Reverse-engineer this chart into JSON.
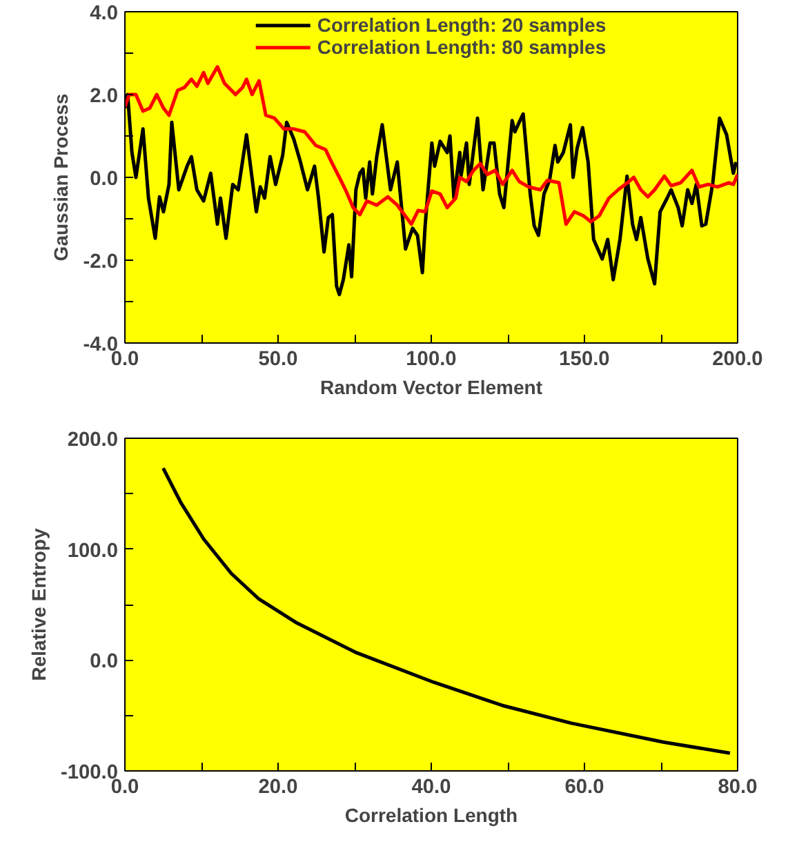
{
  "chart_data": [
    {
      "type": "line",
      "xlabel": "Random Vector Element",
      "ylabel": "Gaussian Process",
      "legend": "top",
      "grid": false,
      "xlim": [
        0,
        200
      ],
      "ylim": [
        -4,
        4
      ],
      "xticks": [
        {
          "value": 0,
          "label": "0.0"
        },
        {
          "value": 25,
          "label": null
        },
        {
          "value": 50,
          "label": "50.0"
        },
        {
          "value": 75,
          "label": null
        },
        {
          "value": 100,
          "label": "100.0"
        },
        {
          "value": 125,
          "label": null
        },
        {
          "value": 150,
          "label": "150.0"
        },
        {
          "value": 175,
          "label": null
        },
        {
          "value": 200,
          "label": "200.0"
        }
      ],
      "yticks": [
        {
          "value": -4,
          "label": "-4.0"
        },
        {
          "value": -3,
          "label": null
        },
        {
          "value": -2,
          "label": "-2.0"
        },
        {
          "value": -1,
          "label": null
        },
        {
          "value": 0,
          "label": "0.0"
        },
        {
          "value": 1,
          "label": null
        },
        {
          "value": 2,
          "label": "2.0"
        },
        {
          "value": 3,
          "label": null
        },
        {
          "value": 4,
          "label": "4.0"
        }
      ],
      "series": [
        {
          "name": "Correlation Length: 20 samples",
          "color": "#000000",
          "x": [
            0,
            0.9,
            2.3,
            3.6,
            5.9,
            7.7,
            9.9,
            11.3,
            12.6,
            14.4,
            15.3,
            17.6,
            20.3,
            21.7,
            23.5,
            25.7,
            28.0,
            30.2,
            31.2,
            33.0,
            35.2,
            37.0,
            39.7,
            42.9,
            44.2,
            45.6,
            47.4,
            49.2,
            51.5,
            52.8,
            55.1,
            57.3,
            59.6,
            61.9,
            63.2,
            65.0,
            66.4,
            67.7,
            69.1,
            70.0,
            71.3,
            73.1,
            74.0,
            75.4,
            76.7,
            77.7,
            78.6,
            79.9,
            80.8,
            82.2,
            84.0,
            86.7,
            88.9,
            91.6,
            93.9,
            95.5,
            97.1,
            98.0,
            100.2,
            101.1,
            102.9,
            105.2,
            106.1,
            107.4,
            109.3,
            109.7,
            111.5,
            112.4,
            115.1,
            116.9,
            119.2,
            120.5,
            122.3,
            123.7,
            126.4,
            127.3,
            128.7,
            130.0,
            132.3,
            133.6,
            135.0,
            136.8,
            138.6,
            140.4,
            141.3,
            143.1,
            145.4,
            146.3,
            147.6,
            149.4,
            151.2,
            153.0,
            155.8,
            157.6,
            159.4,
            161.6,
            163.9,
            165.7,
            167.0,
            168.4,
            170.7,
            172.9,
            174.7,
            177.0,
            178.3,
            180.6,
            181.9,
            183.7,
            185.1,
            186.5,
            188.3,
            189.6,
            191.9,
            194.1,
            196.4,
            198.6,
            199.5
          ],
          "values": [
            1.67,
            2.0,
            0.6,
            0.0,
            1.17,
            -0.5,
            -1.47,
            -0.47,
            -0.83,
            -0.17,
            1.33,
            -0.3,
            0.27,
            0.5,
            -0.3,
            -0.57,
            0.1,
            -1.13,
            -0.5,
            -1.47,
            -0.17,
            -0.3,
            1.03,
            -0.83,
            -0.23,
            -0.5,
            0.5,
            -0.17,
            0.53,
            1.33,
            0.93,
            0.37,
            -0.3,
            0.27,
            -0.5,
            -1.8,
            -0.97,
            -0.9,
            -2.63,
            -2.83,
            -2.47,
            -1.63,
            -2.4,
            -0.3,
            0.1,
            0.2,
            -0.5,
            0.37,
            -0.4,
            0.5,
            1.27,
            -0.3,
            0.37,
            -1.73,
            -1.23,
            -1.4,
            -2.3,
            -1.17,
            0.83,
            0.27,
            0.87,
            0.6,
            1.0,
            -0.5,
            0.6,
            0.03,
            0.83,
            -0.17,
            1.43,
            -0.3,
            0.83,
            0.83,
            -0.4,
            -0.73,
            1.37,
            1.1,
            1.33,
            1.53,
            -0.4,
            -1.17,
            -1.4,
            -0.4,
            -0.07,
            0.77,
            0.37,
            0.6,
            1.27,
            0.0,
            0.7,
            1.2,
            0.37,
            -1.5,
            -1.97,
            -1.5,
            -2.47,
            -1.5,
            0.03,
            -1.13,
            -1.5,
            -0.97,
            -1.97,
            -2.57,
            -0.83,
            -0.5,
            -0.3,
            -0.73,
            -1.17,
            -0.3,
            -0.63,
            -0.17,
            -1.17,
            -1.13,
            -0.13,
            1.43,
            1.03,
            0.1,
            0.37
          ]
        },
        {
          "name": "Correlation Length: 80 samples",
          "color": "#ff0000",
          "x": [
            0,
            1.4,
            3.6,
            5.9,
            8.1,
            10.4,
            12.6,
            14.4,
            17.2,
            19.4,
            21.7,
            23.5,
            25.7,
            27.1,
            30.2,
            32.5,
            34.8,
            36.1,
            38.4,
            39.7,
            41.5,
            43.8,
            46.0,
            48.8,
            51.9,
            55.1,
            58.7,
            62.3,
            65.5,
            67.7,
            70.0,
            72.2,
            74.5,
            76.7,
            79.0,
            82.2,
            85.8,
            88.9,
            93.5,
            95.7,
            98.0,
            100.2,
            102.9,
            105.2,
            108.0,
            109.3,
            111.5,
            113.8,
            116.0,
            118.3,
            120.9,
            123.3,
            126.4,
            128.7,
            131.8,
            135.6,
            137.9,
            141.7,
            144.0,
            146.7,
            149.7,
            152.1,
            154.8,
            158.0,
            161.0,
            164.0,
            166.1,
            168.4,
            170.7,
            172.9,
            176.1,
            178.3,
            181.4,
            185.1,
            187.4,
            190.4,
            193.4,
            197.1,
            198.6,
            200.0
          ],
          "values": [
            1.7,
            2.0,
            2.0,
            1.6,
            1.67,
            2.0,
            1.67,
            1.5,
            2.1,
            2.17,
            2.37,
            2.2,
            2.53,
            2.27,
            2.67,
            2.27,
            2.1,
            2.0,
            2.17,
            2.37,
            2.0,
            2.33,
            1.5,
            1.43,
            1.17,
            1.17,
            1.1,
            0.77,
            0.67,
            0.33,
            0.0,
            -0.33,
            -0.73,
            -0.9,
            -0.57,
            -0.67,
            -0.47,
            -0.67,
            -1.13,
            -0.8,
            -0.83,
            -0.33,
            -0.4,
            -0.73,
            -0.5,
            0.0,
            -0.1,
            0.17,
            0.33,
            0.07,
            0.17,
            -0.17,
            0.17,
            -0.1,
            -0.23,
            -0.3,
            -0.07,
            -0.13,
            -1.13,
            -0.83,
            -0.93,
            -1.07,
            -0.93,
            -0.5,
            -0.3,
            -0.13,
            0.0,
            -0.3,
            -0.47,
            -0.3,
            0.03,
            -0.2,
            -0.13,
            0.17,
            -0.23,
            -0.17,
            -0.23,
            -0.13,
            -0.17,
            0.07
          ]
        }
      ]
    },
    {
      "type": "line",
      "xlabel": "Correlation Length",
      "ylabel": "Relative Entropy",
      "grid": false,
      "xlim": [
        0,
        80
      ],
      "ylim": [
        -100,
        200
      ],
      "xticks": [
        {
          "value": 0,
          "label": "0.0"
        },
        {
          "value": 10,
          "label": null
        },
        {
          "value": 20,
          "label": "20.0"
        },
        {
          "value": 30,
          "label": null
        },
        {
          "value": 40,
          "label": "40.0"
        },
        {
          "value": 50,
          "label": null
        },
        {
          "value": 60,
          "label": "60.0"
        },
        {
          "value": 70,
          "label": null
        },
        {
          "value": 80,
          "label": "80.0"
        }
      ],
      "yticks": [
        {
          "value": -100,
          "label": "-100.0"
        },
        {
          "value": -50,
          "label": null
        },
        {
          "value": 0,
          "label": "0.0"
        },
        {
          "value": 50,
          "label": null
        },
        {
          "value": 100,
          "label": "100.0"
        },
        {
          "value": 150,
          "label": null
        },
        {
          "value": 200,
          "label": "200.0"
        }
      ],
      "series": [
        {
          "color": "#000000",
          "x": [
            5.0,
            7.3,
            10.3,
            13.9,
            17.5,
            22.3,
            30.1,
            40.3,
            49.3,
            58.3,
            70.3,
            79.0
          ],
          "values": [
            173,
            142,
            109,
            78,
            55,
            34,
            7,
            -20,
            -41,
            -57,
            -74,
            -84
          ]
        }
      ]
    }
  ]
}
